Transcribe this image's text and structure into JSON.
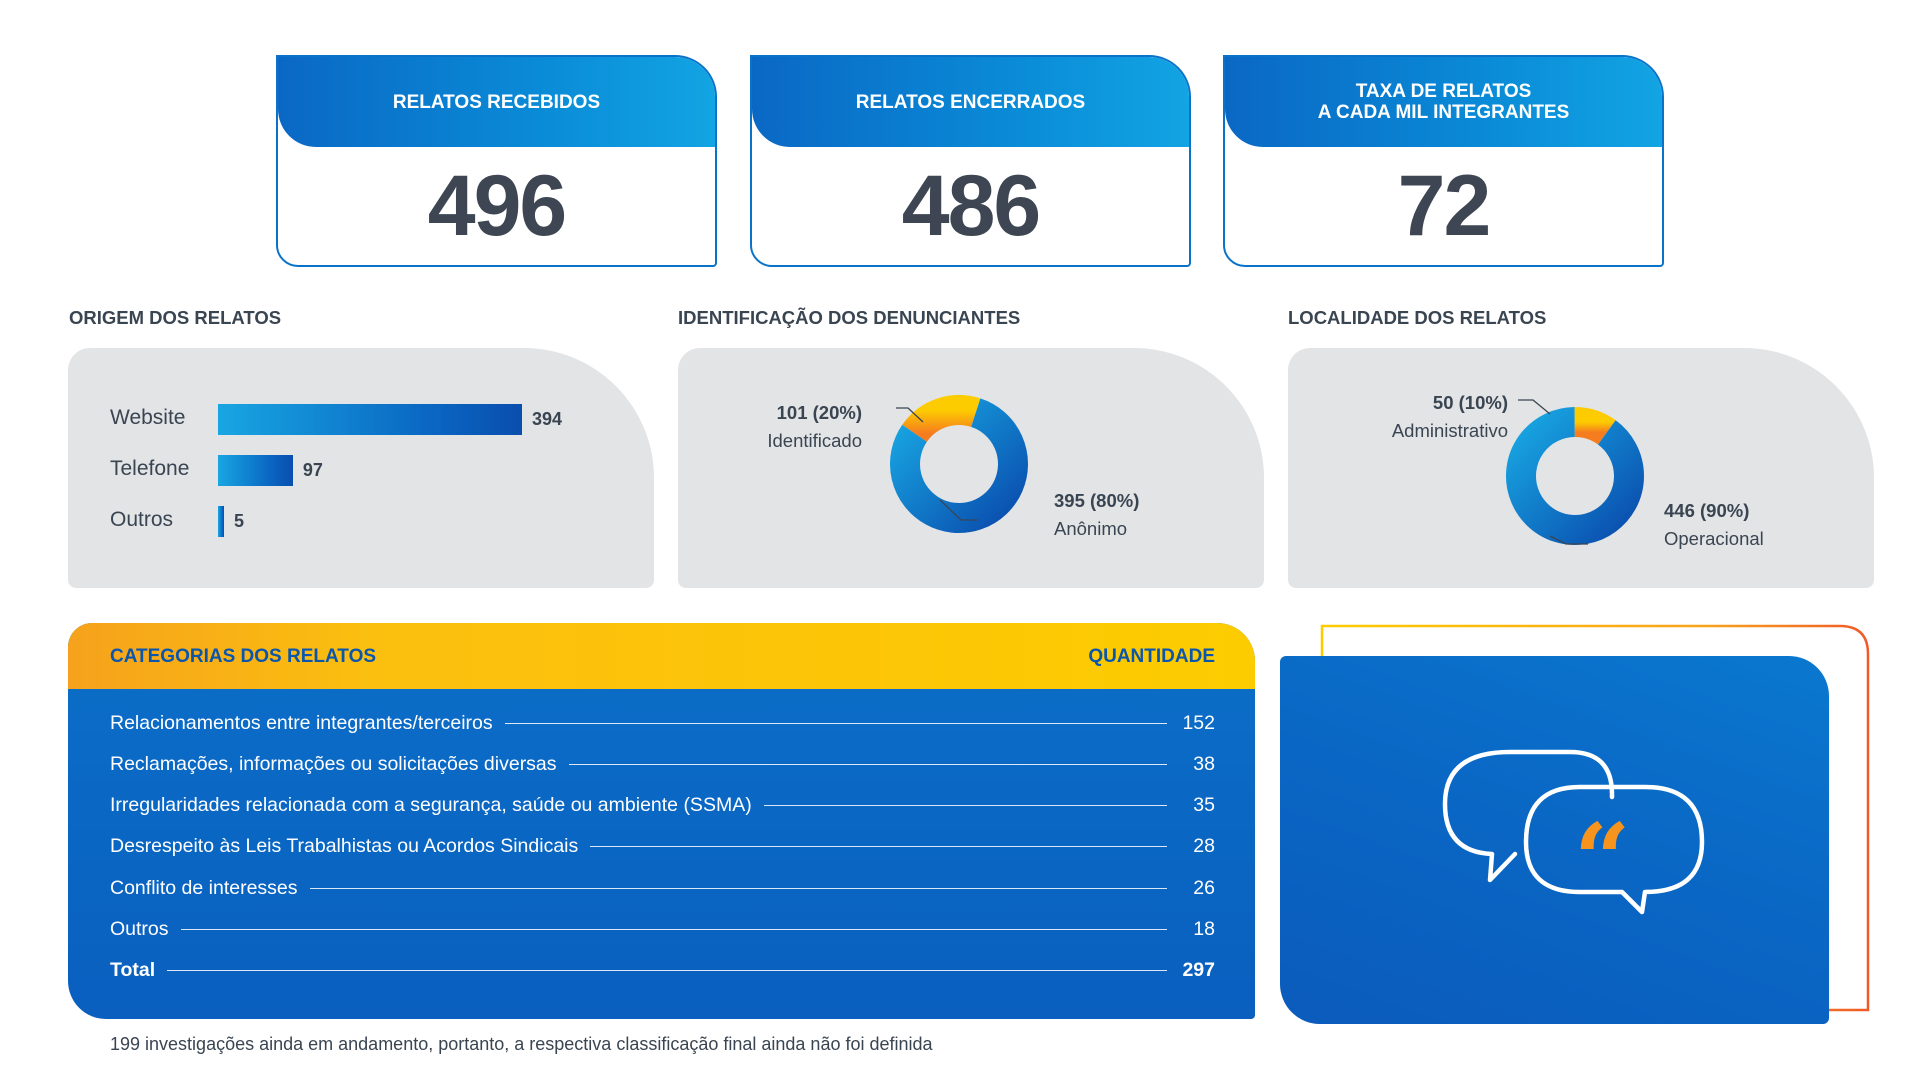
{
  "kpis": [
    {
      "label": "RELATOS RECEBIDOS",
      "value": "496"
    },
    {
      "label": "RELATOS ENCERRADOS",
      "value": "486"
    },
    {
      "label_line1": "TAXA DE RELATOS",
      "label_line2": "A CADA MIL INTEGRANTES",
      "value": "72"
    }
  ],
  "sections": {
    "origem": "ORIGEM DOS RELATOS",
    "identificacao": "IDENTIFICAÇÃO DOS DENUNCIANTES",
    "localidade": "LOCALIDADE DOS RELATOS"
  },
  "colors": {
    "blue": "#0a66c2",
    "light_blue": "#18a6e2",
    "orange": "#f6a21c",
    "yellow": "#fdcc00",
    "panel_grey": "#e3e4e6",
    "text_dark": "#3a4552"
  },
  "icons": {
    "quote": "speech-bubbles-quote-icon"
  },
  "chart_data": [
    {
      "type": "bar",
      "orientation": "horizontal",
      "title": "ORIGEM DOS RELATOS",
      "categories": [
        "Website",
        "Telefone",
        "Outros"
      ],
      "values": [
        394,
        97,
        5
      ],
      "value_labels": [
        "394",
        "97",
        "5"
      ],
      "xlim": [
        0,
        394
      ]
    },
    {
      "type": "pie",
      "variant": "donut",
      "title": "IDENTIFICAÇÃO DOS DENUNCIANTES",
      "slices": [
        {
          "name": "Anônimo",
          "value": 395,
          "label": "395 (80%)",
          "color": "#0a66c2"
        },
        {
          "name": "Identificado",
          "value": 101,
          "label": "101 (20%)",
          "color": "#f6a21c"
        }
      ]
    },
    {
      "type": "pie",
      "variant": "donut",
      "title": "LOCALIDADE DOS RELATOS",
      "slices": [
        {
          "name": "Operacional",
          "value": 446,
          "label": "446 (90%)",
          "color": "#0a66c2"
        },
        {
          "name": "Administrativo",
          "value": 50,
          "label": "50 (10%)",
          "color": "#fbbf0f"
        }
      ]
    },
    {
      "type": "table",
      "title": "CATEGORIAS DOS RELATOS",
      "header_right": "QUANTIDADE",
      "rows": [
        {
          "name": "Relacionamentos entre integrantes/terceiros",
          "value": "152"
        },
        {
          "name": "Reclamações, informações ou solicitações diversas",
          "value": "38"
        },
        {
          "name": "Irregularidades relacionada com a segurança, saúde ou ambiente (SSMA)",
          "value": "35"
        },
        {
          "name": "Desrespeito às Leis Trabalhistas ou Acordos Sindicais",
          "value": "28"
        },
        {
          "name": "Conflito de interesses",
          "value": "26"
        },
        {
          "name": "Outros",
          "value": "18"
        }
      ],
      "total": {
        "name": "Total",
        "value": "297"
      }
    }
  ],
  "footnote": "199 investigações ainda em andamento, portanto, a respectiva classificação final ainda não foi definida"
}
